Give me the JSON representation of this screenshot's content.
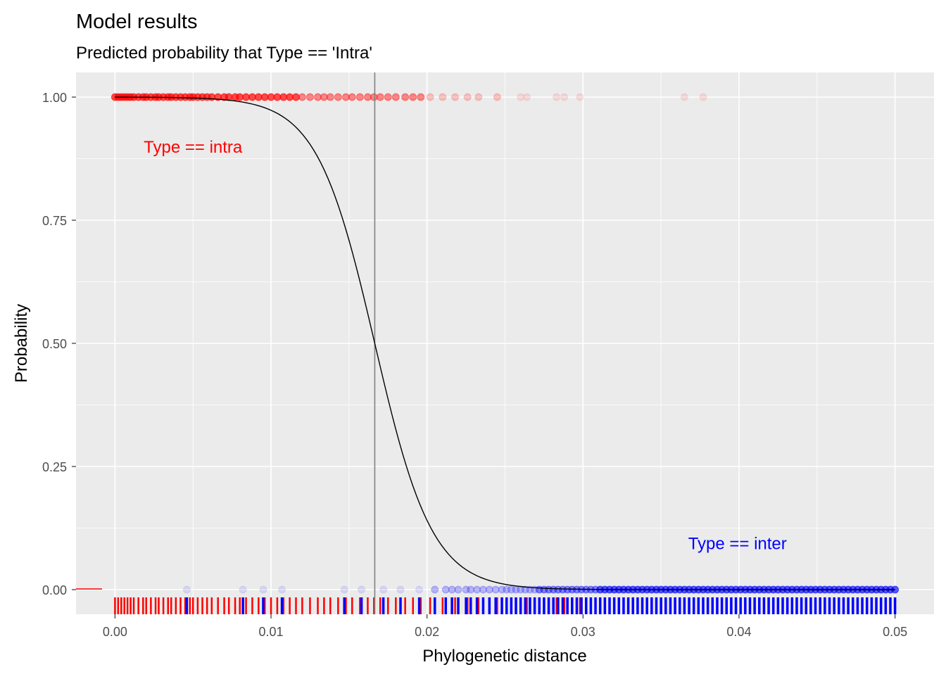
{
  "chart_data": {
    "type": "scatter",
    "title": "Model results",
    "subtitle": "Predicted probability that Type == 'Intra'",
    "xlabel": "Phylogenetic distance",
    "ylabel": "Probability",
    "xlim": [
      -0.0025,
      0.0525
    ],
    "ylim": [
      -0.05,
      1.05
    ],
    "x_ticks": [
      0.0,
      0.01,
      0.02,
      0.03,
      0.04,
      0.05
    ],
    "x_tick_labels": [
      "0.00",
      "0.01",
      "0.02",
      "0.03",
      "0.04",
      "0.05"
    ],
    "y_ticks": [
      0.0,
      0.25,
      0.5,
      0.75,
      1.0
    ],
    "y_tick_labels": [
      "0.00",
      "0.25",
      "0.50",
      "0.75",
      "1.00"
    ],
    "grid": true,
    "background": "#ebebeb",
    "decision_threshold_x": 0.01665,
    "logistic_curve": {
      "midpoint": 0.01665,
      "scale": 0.00185,
      "stroke": "#000000"
    },
    "annotations": [
      {
        "text": "Type == intra",
        "x": 0.005,
        "y": 0.9,
        "color": "#ff0000"
      },
      {
        "text": "Type == inter",
        "x": 0.0399,
        "y": 0.095,
        "color": "#0000ff"
      }
    ],
    "series": [
      {
        "name": "intra",
        "y": 1,
        "color": "#ff0000",
        "x": [
          0.0,
          0.0002,
          0.0004,
          0.0006,
          0.0008,
          0.001,
          0.0012,
          0.0015,
          0.0018,
          0.002,
          0.0023,
          0.0026,
          0.0028,
          0.0031,
          0.0034,
          0.0036,
          0.0039,
          0.0042,
          0.0045,
          0.0048,
          0.005,
          0.0053,
          0.0056,
          0.0059,
          0.0062,
          0.0066,
          0.007,
          0.0073,
          0.0077,
          0.008,
          0.0084,
          0.0088,
          0.0092,
          0.0096,
          0.01,
          0.0104,
          0.0108,
          0.0112,
          0.0116,
          0.012,
          0.0125,
          0.013,
          0.0134,
          0.0138,
          0.0143,
          0.0148,
          0.0152,
          0.0157,
          0.0162,
          0.0166,
          0.017,
          0.0175,
          0.018,
          0.0186,
          0.0191,
          0.0196,
          0.0202,
          0.021,
          0.0218,
          0.0226,
          0.0233,
          0.0245,
          0.026,
          0.0264,
          0.0283,
          0.0288,
          0.0298,
          0.0365,
          0.0377
        ]
      },
      {
        "name": "inter",
        "y": 0,
        "color": "#0000ff",
        "x": [
          0.0046,
          0.0082,
          0.0095,
          0.0107,
          0.0147,
          0.0158,
          0.0172,
          0.0183,
          0.0195,
          0.0205,
          0.0212,
          0.0216,
          0.022,
          0.0225,
          0.0228,
          0.0232,
          0.0236,
          0.024,
          0.0244,
          0.0248,
          0.0251,
          0.0254,
          0.0257,
          0.026,
          0.0263,
          0.0266,
          0.0269,
          0.0272,
          0.0275,
          0.0278,
          0.0281,
          0.0284,
          0.0287,
          0.029,
          0.0293,
          0.0296,
          0.0299,
          0.0302,
          0.0305,
          0.0308,
          0.0311,
          0.0314,
          0.0317,
          0.032,
          0.0323,
          0.0326,
          0.0329,
          0.0332,
          0.0335,
          0.0338,
          0.0341,
          0.0344,
          0.0347,
          0.035,
          0.0353,
          0.0356,
          0.0359,
          0.0362,
          0.0365,
          0.0368,
          0.0371,
          0.0374,
          0.0377,
          0.038,
          0.0383,
          0.0386,
          0.0389,
          0.0392,
          0.0395,
          0.0398,
          0.0401,
          0.0404,
          0.0407,
          0.041,
          0.0413,
          0.0416,
          0.0419,
          0.0422,
          0.0425,
          0.0428,
          0.0431,
          0.0434,
          0.0437,
          0.044,
          0.0443,
          0.0446,
          0.0449,
          0.0452,
          0.0455,
          0.0458,
          0.0461,
          0.0464,
          0.0467,
          0.047,
          0.0473,
          0.0476,
          0.0479,
          0.0482,
          0.0485,
          0.0488,
          0.0491,
          0.0494,
          0.0497,
          0.05
        ]
      }
    ]
  }
}
